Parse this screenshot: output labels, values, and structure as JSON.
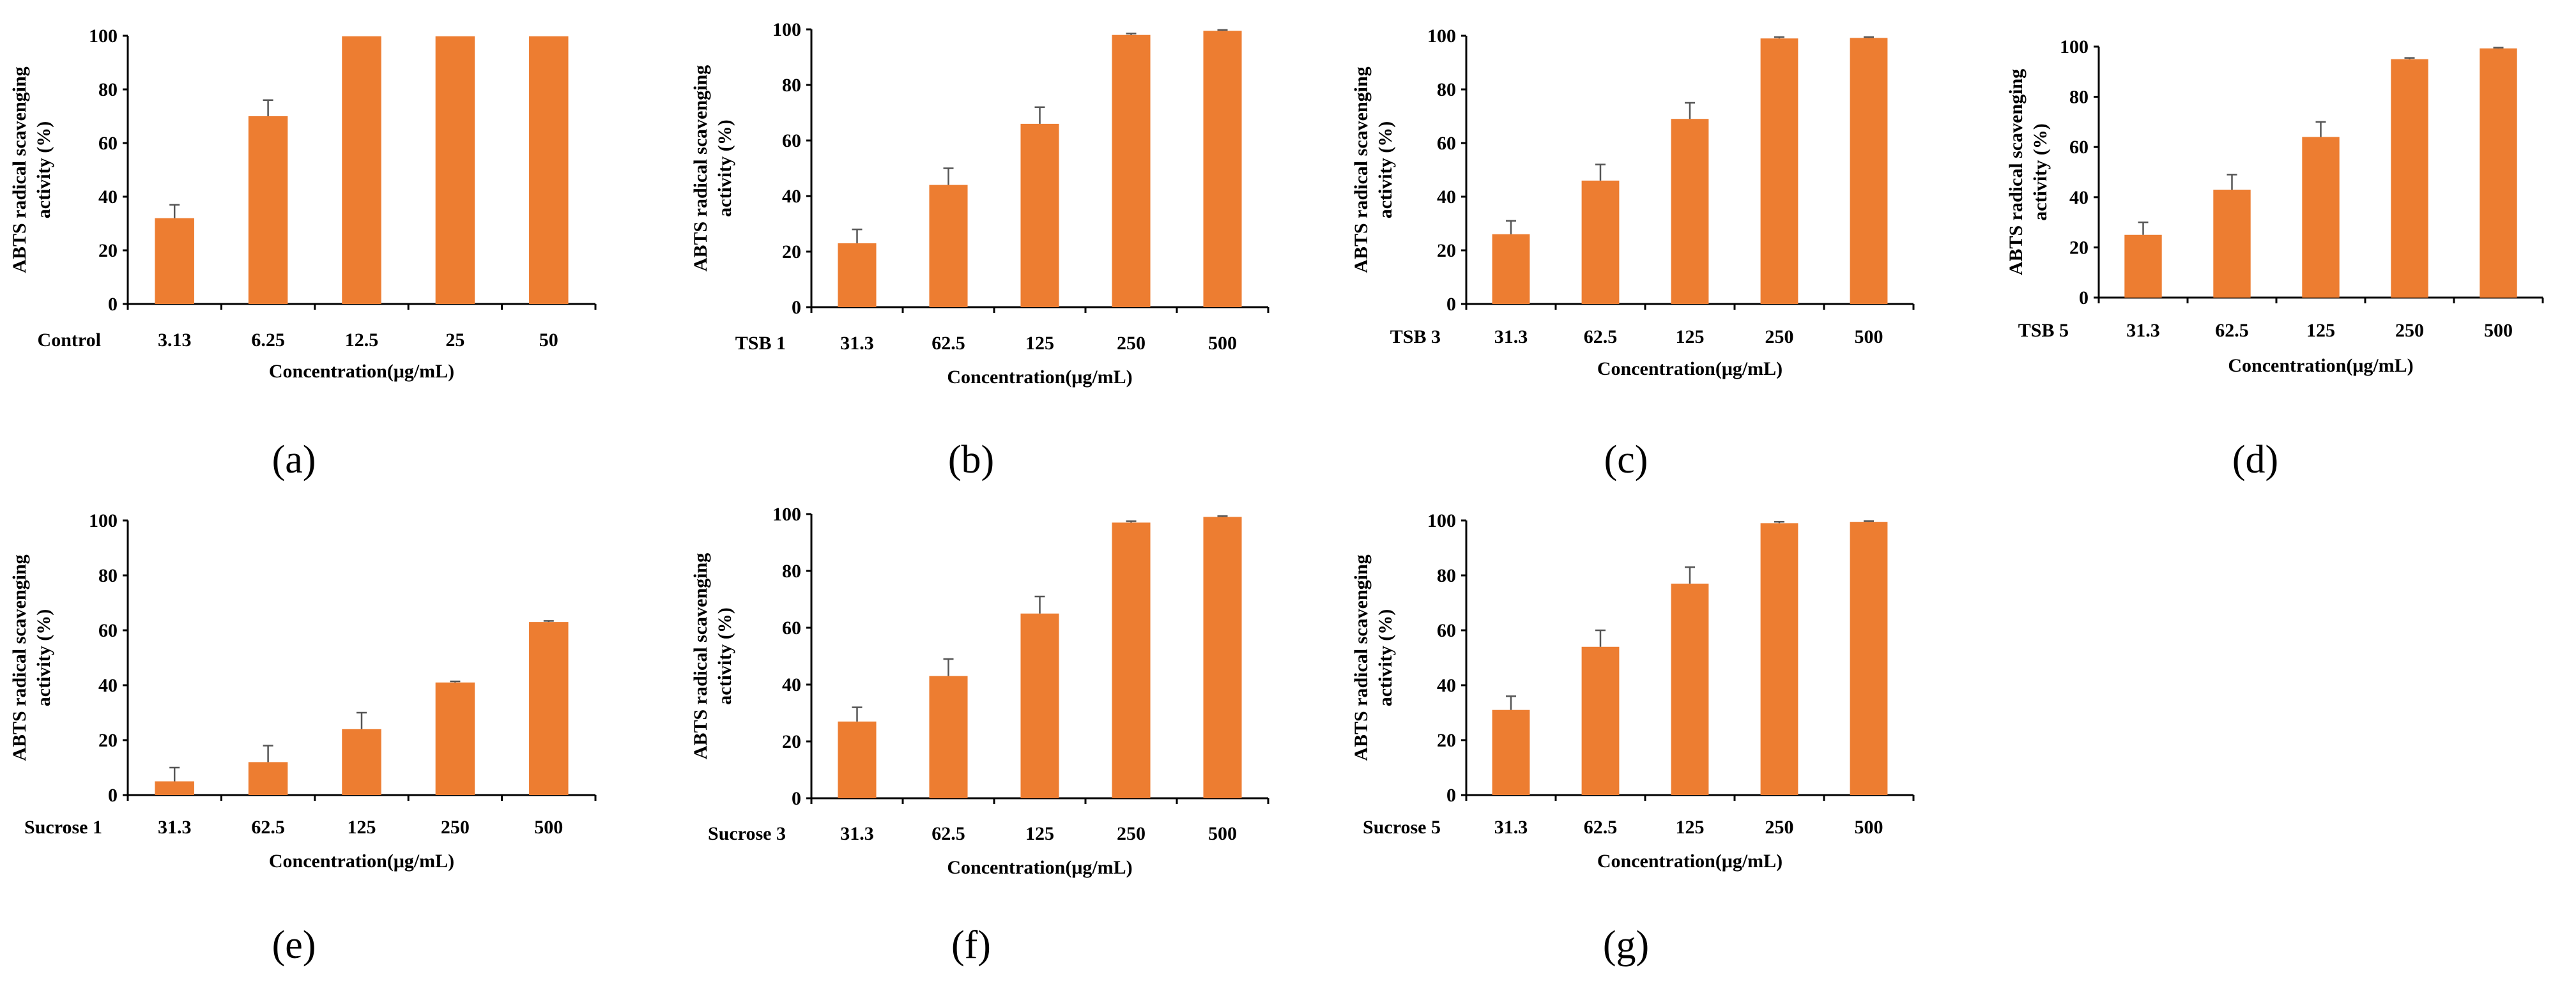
{
  "figure": {
    "description_bar_color": "#ED7D31",
    "axis_color": "#000000"
  },
  "chart_data": [
    {
      "id": "a",
      "panel_label": "(a)",
      "type": "bar",
      "group_label": "Control",
      "categories": [
        "3.13",
        "6.25",
        "12.5",
        "25",
        "50"
      ],
      "values": [
        32,
        70,
        99.8,
        99.8,
        99.8
      ],
      "errors": [
        5,
        6,
        0,
        0,
        0
      ],
      "ylabel": [
        "ABTS radical scavenging",
        "activity (%)"
      ],
      "xlabel": "Concentration(μg/mL)",
      "ylim": [
        0,
        100
      ],
      "yticks": [
        0,
        20,
        40,
        60,
        80,
        100
      ],
      "grid": false,
      "color": "#ED7D31"
    },
    {
      "id": "b",
      "panel_label": "(b)",
      "type": "bar",
      "group_label": "TSB 1",
      "categories": [
        "31.3",
        "62.5",
        "125",
        "250",
        "500"
      ],
      "values": [
        23,
        44,
        66,
        98,
        99.5
      ],
      "errors": [
        5,
        6,
        6,
        0.5,
        0.3
      ],
      "ylabel": [
        "ABTS radical scavenging",
        "activity (%)"
      ],
      "xlabel": "Concentration(μg/mL)",
      "ylim": [
        0,
        100
      ],
      "yticks": [
        0,
        20,
        40,
        60,
        80,
        100
      ],
      "grid": false,
      "color": "#ED7D31"
    },
    {
      "id": "c",
      "panel_label": "(c)",
      "type": "bar",
      "group_label": "TSB 3",
      "categories": [
        "31.3",
        "62.5",
        "125",
        "250",
        "500"
      ],
      "values": [
        26,
        46,
        69,
        99,
        99.2
      ],
      "errors": [
        5,
        6,
        6,
        0.5,
        0.3
      ],
      "ylabel": [
        "ABTS radical scavenging",
        "activity (%)"
      ],
      "xlabel": "Concentration(μg/mL)",
      "ylim": [
        0,
        100
      ],
      "yticks": [
        0,
        20,
        40,
        60,
        80,
        100
      ],
      "grid": false,
      "color": "#ED7D31"
    },
    {
      "id": "d",
      "panel_label": "(d)",
      "type": "bar",
      "group_label": "TSB 5",
      "categories": [
        "31.3",
        "62.5",
        "125",
        "250",
        "500"
      ],
      "values": [
        25,
        43,
        64,
        95,
        99.3
      ],
      "errors": [
        5,
        6,
        6,
        0.5,
        0.3
      ],
      "ylabel": [
        "ABTS radical scavenging",
        "activity (%)"
      ],
      "xlabel": "Concentration(μg/mL)",
      "ylim": [
        0,
        100
      ],
      "yticks": [
        0,
        20,
        40,
        60,
        80,
        100
      ],
      "grid": false,
      "color": "#ED7D31"
    },
    {
      "id": "e",
      "panel_label": "(e)",
      "type": "bar",
      "group_label": "Sucrose 1",
      "categories": [
        "31.3",
        "62.5",
        "125",
        "250",
        "500"
      ],
      "values": [
        5,
        12,
        24,
        41,
        63
      ],
      "errors": [
        5,
        6,
        6,
        0.4,
        0.4
      ],
      "ylabel": [
        "ABTS radical scavenging",
        "activity (%)"
      ],
      "xlabel": "Concentration(μg/mL)",
      "ylim": [
        0,
        100
      ],
      "yticks": [
        0,
        20,
        40,
        60,
        80,
        100
      ],
      "grid": false,
      "color": "#ED7D31"
    },
    {
      "id": "f",
      "panel_label": "(f)",
      "type": "bar",
      "group_label": "Sucrose 3",
      "categories": [
        "31.3",
        "62.5",
        "125",
        "250",
        "500"
      ],
      "values": [
        27,
        43,
        65,
        97,
        99
      ],
      "errors": [
        5,
        6,
        6,
        0.5,
        0.3
      ],
      "ylabel": [
        "ABTS radical scavenging",
        "activity (%)"
      ],
      "xlabel": "Concentration(μg/mL)",
      "ylim": [
        0,
        100
      ],
      "yticks": [
        0,
        20,
        40,
        60,
        80,
        100
      ],
      "grid": false,
      "color": "#ED7D31"
    },
    {
      "id": "g",
      "panel_label": "(g)",
      "type": "bar",
      "group_label": "Sucrose 5",
      "categories": [
        "31.3",
        "62.5",
        "125",
        "250",
        "500"
      ],
      "values": [
        31,
        54,
        77,
        99,
        99.5
      ],
      "errors": [
        5,
        6,
        6,
        0.5,
        0.3
      ],
      "ylabel": [
        "ABTS radical scavenging",
        "activity (%)"
      ],
      "xlabel": "Concentration(μg/mL)",
      "ylim": [
        0,
        100
      ],
      "yticks": [
        0,
        20,
        40,
        60,
        80,
        100
      ],
      "grid": false,
      "color": "#ED7D31"
    }
  ]
}
